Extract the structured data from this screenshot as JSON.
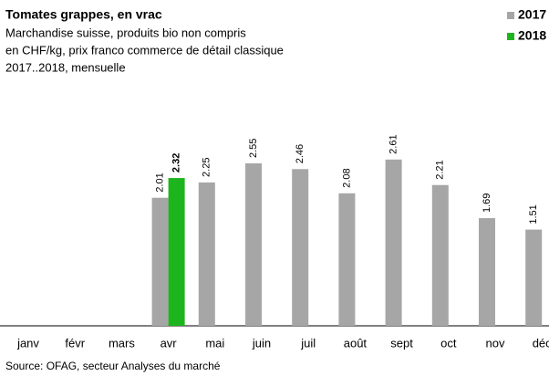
{
  "chart_data": {
    "type": "bar",
    "title": "Tomates grappes, en vrac",
    "subtitle": [
      "Marchandise suisse, produits bio non compris",
      "en CHF/kg, prix franco commerce de détail classique",
      "2017..2018, mensuelle"
    ],
    "source": "Source: OFAG, secteur Analyses du marché",
    "categories": [
      "janv",
      "févr",
      "mars",
      "avr",
      "mai",
      "juin",
      "juil",
      "août",
      "sept",
      "oct",
      "nov",
      "déc"
    ],
    "series": [
      {
        "name": "2017",
        "color": "#a6a6a6",
        "values": [
          null,
          null,
          null,
          2.01,
          2.25,
          2.55,
          2.46,
          2.08,
          2.61,
          2.21,
          1.69,
          1.51
        ]
      },
      {
        "name": "2018",
        "color": "#1db51d",
        "values": [
          null,
          null,
          null,
          2.32,
          null,
          null,
          null,
          null,
          null,
          null,
          null,
          null
        ]
      }
    ],
    "legend": "top-right"
  }
}
